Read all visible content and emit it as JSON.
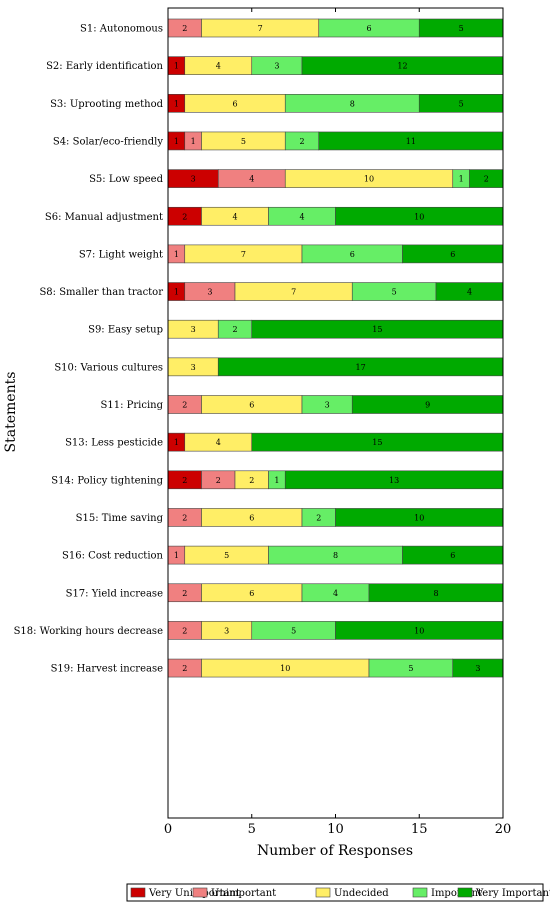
{
  "chart_data": {
    "type": "bar",
    "orientation": "horizontal",
    "stacked": true,
    "xlabel": "Number of Responses",
    "ylabel": "Statements",
    "xlim": [
      0,
      20
    ],
    "xticks": [
      0,
      5,
      10,
      15,
      20
    ],
    "legend_position": "bottom",
    "categories": [
      "S1:  Autonomous",
      "S2:  Early identification",
      "S3:  Uprooting method",
      "S4:  Solar/eco-friendly",
      "S5:  Low speed",
      "S6:  Manual adjustment",
      "S7:  Light weight",
      "S8:  Smaller than tractor",
      "S9:  Easy setup",
      "S10:  Various cultures",
      "S11:  Pricing",
      "S13:  Less pesticide",
      "S14:  Policy tightening",
      "S15:  Time saving",
      "S16:  Cost reduction",
      "S17:  Yield increase",
      "S18:  Working hours decrease",
      "S19:  Harvest increase"
    ],
    "series": [
      {
        "name": "Very Unimportant",
        "color": "#cc0000",
        "values": [
          0,
          1,
          1,
          1,
          3,
          2,
          0,
          1,
          0,
          0,
          0,
          1,
          2,
          0,
          0,
          0,
          0,
          0
        ]
      },
      {
        "name": "Unimportant",
        "color": "#f08080",
        "values": [
          2,
          0,
          0,
          1,
          4,
          0,
          1,
          3,
          0,
          0,
          2,
          0,
          2,
          2,
          1,
          2,
          2,
          2
        ]
      },
      {
        "name": "Undecided",
        "color": "#ffee66",
        "values": [
          7,
          4,
          6,
          5,
          10,
          4,
          7,
          7,
          3,
          3,
          6,
          4,
          2,
          6,
          5,
          6,
          3,
          10
        ]
      },
      {
        "name": "Important",
        "color": "#66ee66",
        "values": [
          6,
          3,
          8,
          2,
          1,
          4,
          6,
          5,
          2,
          0,
          3,
          0,
          1,
          2,
          8,
          4,
          5,
          5
        ]
      },
      {
        "name": "Very Important",
        "color": "#00aa00",
        "values": [
          5,
          12,
          5,
          11,
          2,
          10,
          6,
          4,
          15,
          17,
          9,
          15,
          13,
          10,
          6,
          8,
          10,
          3
        ]
      }
    ]
  }
}
